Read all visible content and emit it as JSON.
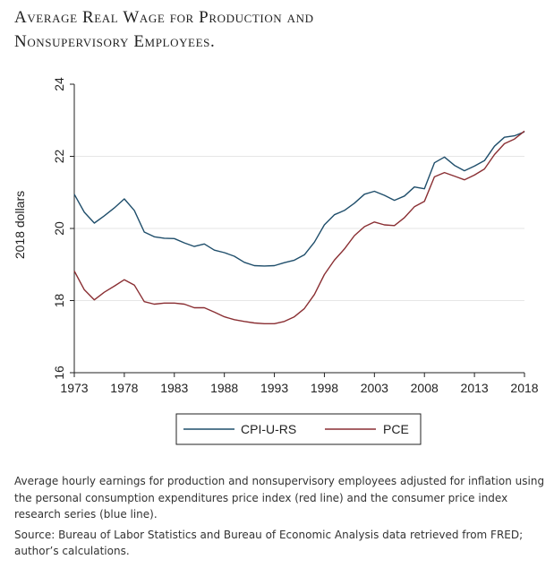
{
  "title_line1": "Average Real Wage for Production and",
  "title_line2": "Nonsupervisory Employees.",
  "note": "Average hourly earnings for production and nonsupervisory employees adjusted for inflation using the personal consumption expenditures price index (red line) and the consumer price index research series (blue line).",
  "source": "Source: Bureau of Labor Statistics and Bureau of Economic Analysis data retrieved from FRED; author’s calculations.",
  "colors": {
    "cpi": "#1f4e6b",
    "pce": "#8a2f33",
    "grid": "#e6e6e6",
    "axis": "#222222"
  },
  "chart_data": {
    "type": "line",
    "title": "",
    "xlabel": "",
    "ylabel": "2018 dollars",
    "xlim": [
      1973,
      2018
    ],
    "ylim": [
      16,
      24
    ],
    "x_ticks": [
      1973,
      1978,
      1983,
      1988,
      1993,
      1998,
      2003,
      2008,
      2013,
      2018
    ],
    "y_ticks": [
      16,
      18,
      20,
      22,
      24
    ],
    "grid": "horizontal",
    "legend": "bottom",
    "x": [
      1973,
      1974,
      1975,
      1976,
      1977,
      1978,
      1979,
      1980,
      1981,
      1982,
      1983,
      1984,
      1985,
      1986,
      1987,
      1988,
      1989,
      1990,
      1991,
      1992,
      1993,
      1994,
      1995,
      1996,
      1997,
      1998,
      1999,
      2000,
      2001,
      2002,
      2003,
      2004,
      2005,
      2006,
      2007,
      2008,
      2009,
      2010,
      2011,
      2012,
      2013,
      2014,
      2015,
      2016,
      2017,
      2018
    ],
    "series": [
      {
        "name": "CPI-U-RS",
        "color": "#1f4e6b",
        "values": [
          20.95,
          20.45,
          20.15,
          20.35,
          20.57,
          20.82,
          20.5,
          19.9,
          19.77,
          19.73,
          19.72,
          19.6,
          19.5,
          19.57,
          19.4,
          19.33,
          19.23,
          19.06,
          18.97,
          18.96,
          18.97,
          19.05,
          19.12,
          19.27,
          19.62,
          20.1,
          20.38,
          20.5,
          20.7,
          20.95,
          21.03,
          20.92,
          20.78,
          20.9,
          21.15,
          21.1,
          21.82,
          21.98,
          21.75,
          21.6,
          21.73,
          21.88,
          22.28,
          22.53,
          22.57,
          22.68
        ]
      },
      {
        "name": "PCE",
        "color": "#8a2f33",
        "values": [
          18.82,
          18.3,
          18.02,
          18.23,
          18.4,
          18.58,
          18.43,
          17.97,
          17.9,
          17.93,
          17.93,
          17.9,
          17.8,
          17.8,
          17.68,
          17.55,
          17.47,
          17.42,
          17.38,
          17.36,
          17.36,
          17.42,
          17.55,
          17.78,
          18.17,
          18.72,
          19.12,
          19.43,
          19.8,
          20.05,
          20.18,
          20.1,
          20.08,
          20.3,
          20.6,
          20.75,
          21.43,
          21.55,
          21.45,
          21.35,
          21.48,
          21.65,
          22.05,
          22.35,
          22.48,
          22.7
        ]
      }
    ]
  }
}
